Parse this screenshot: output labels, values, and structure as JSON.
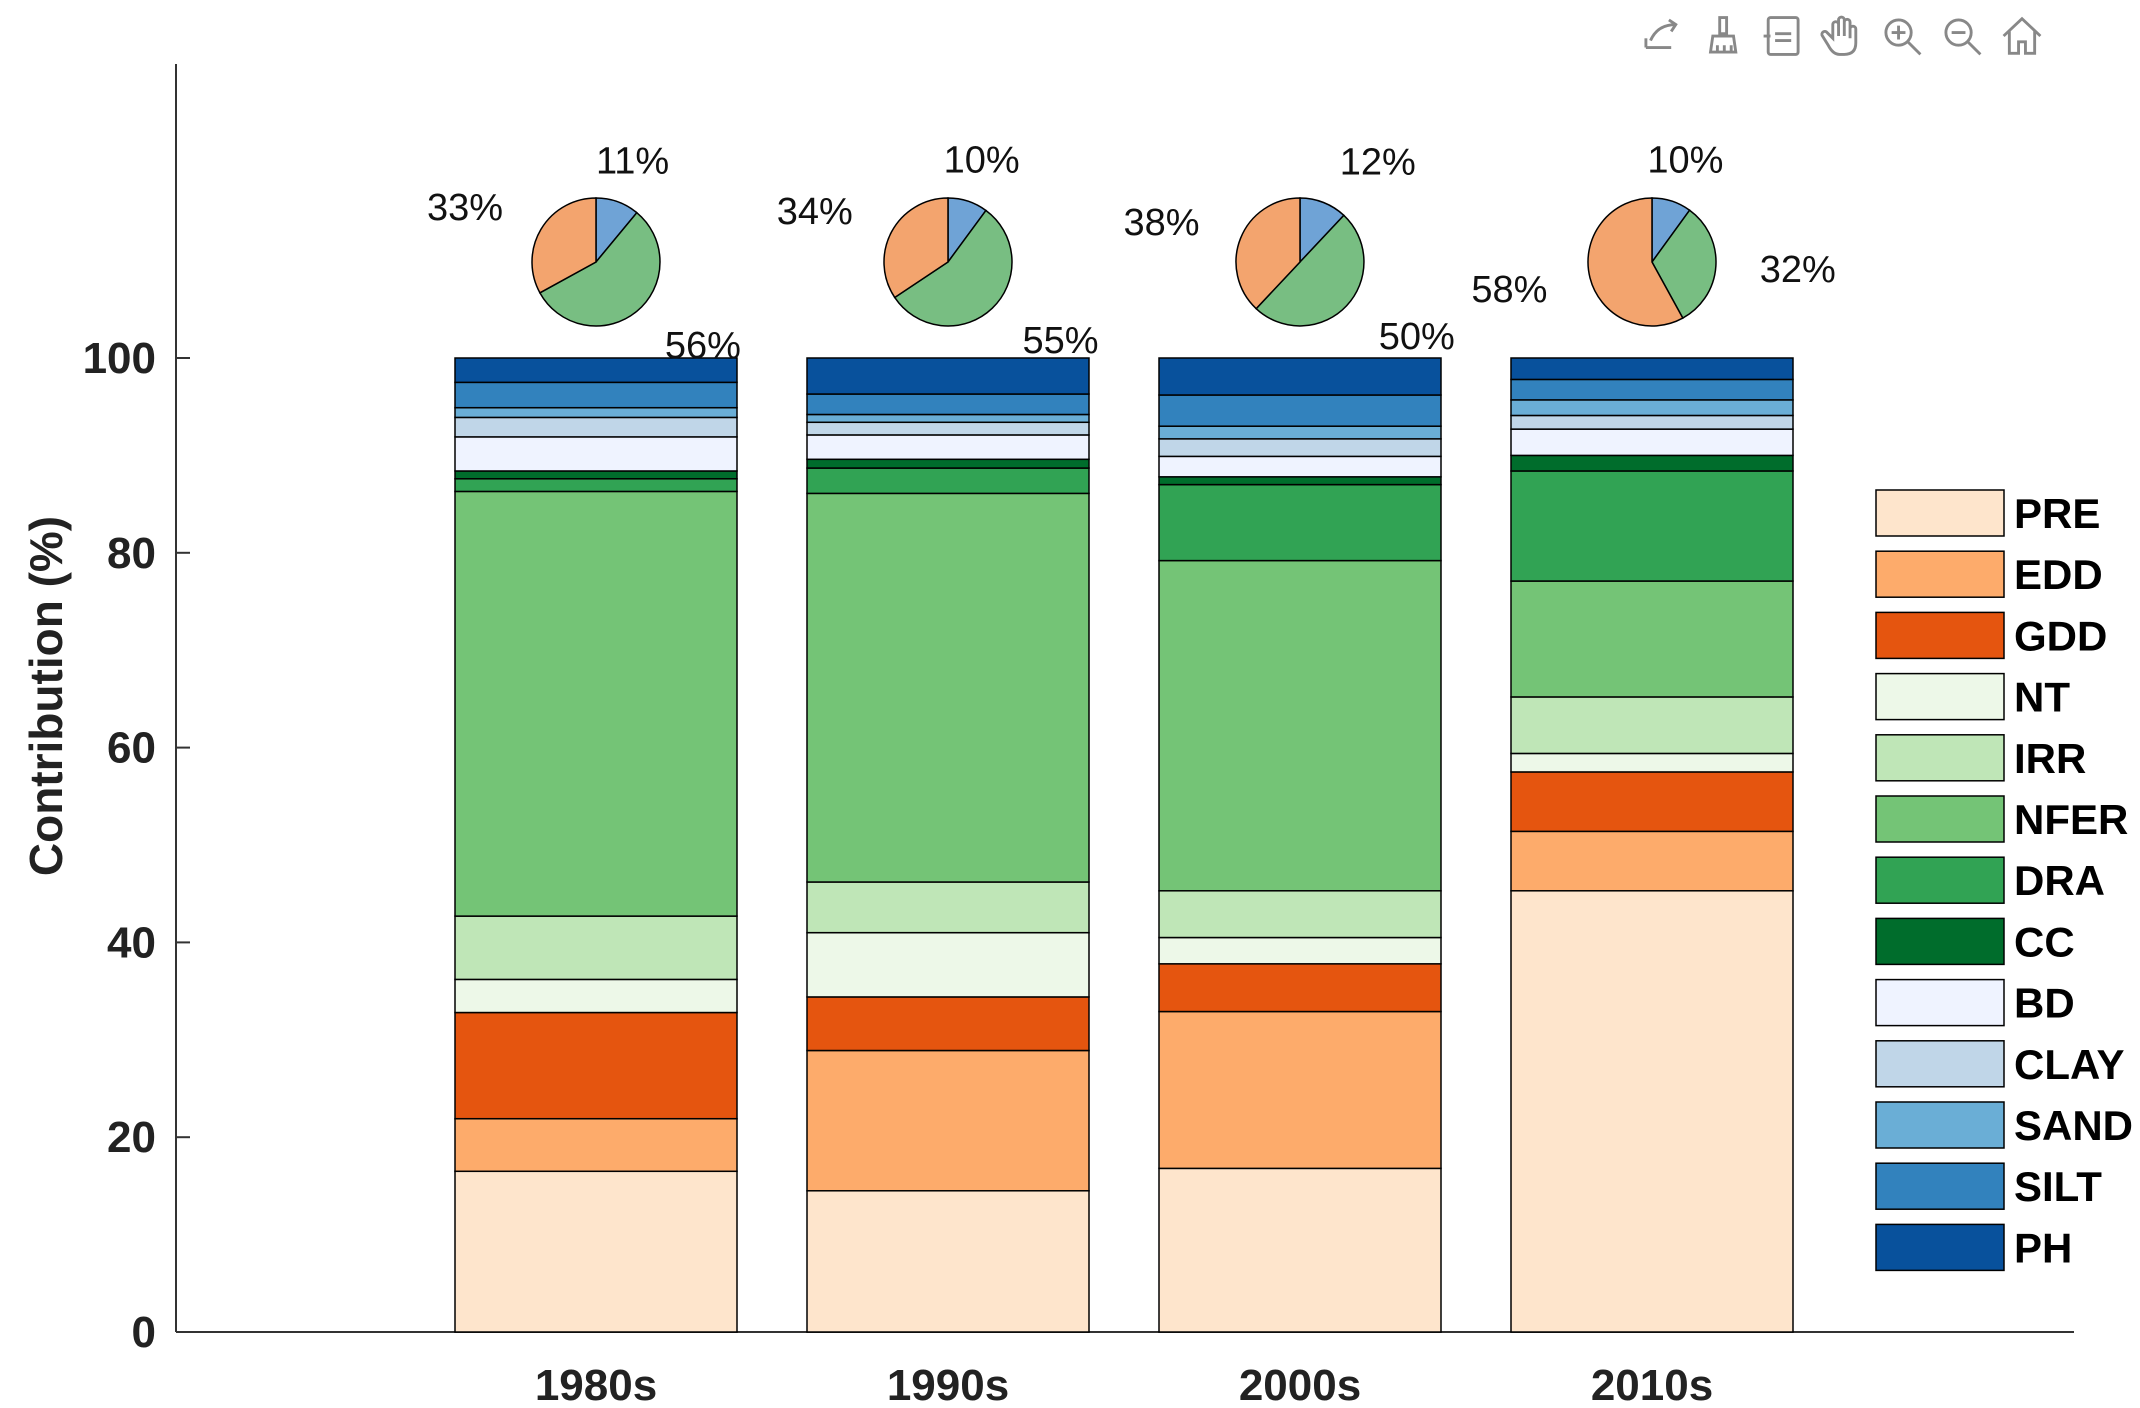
{
  "toolbar": {
    "tools": [
      {
        "name": "export-icon"
      },
      {
        "name": "brush-icon"
      },
      {
        "name": "datatip-icon"
      },
      {
        "name": "pan-hand-icon"
      },
      {
        "name": "zoom-in-icon"
      },
      {
        "name": "zoom-out-icon"
      },
      {
        "name": "home-icon"
      }
    ]
  },
  "chart_data": {
    "type": "bar",
    "stacked": true,
    "categories": [
      "1980s",
      "1990s",
      "2000s",
      "2010s"
    ],
    "ylabel": "Contribution (%)",
    "ylim": [
      0,
      100
    ],
    "yticks": [
      0,
      20,
      40,
      60,
      80,
      100
    ],
    "legend_position": "right",
    "series": [
      {
        "name": "PRE",
        "color": "#fee5cc",
        "values": [
          16.5,
          14.5,
          16.8,
          45.3
        ]
      },
      {
        "name": "EDD",
        "color": "#fdab6b",
        "values": [
          5.4,
          14.4,
          16.1,
          6.1
        ]
      },
      {
        "name": "GDD",
        "color": "#e5550f",
        "values": [
          10.9,
          5.5,
          4.9,
          6.1
        ]
      },
      {
        "name": "NT",
        "color": "#edf8e8",
        "values": [
          3.4,
          6.6,
          2.7,
          1.9
        ]
      },
      {
        "name": "IRR",
        "color": "#bfe6b7",
        "values": [
          6.5,
          5.2,
          4.8,
          5.8
        ]
      },
      {
        "name": "NFER",
        "color": "#74c476",
        "values": [
          43.6,
          39.9,
          33.9,
          11.9
        ]
      },
      {
        "name": "DRA",
        "color": "#31a354",
        "values": [
          1.3,
          2.6,
          7.8,
          11.3
        ]
      },
      {
        "name": "CC",
        "color": "#006d2c",
        "values": [
          0.8,
          0.9,
          0.8,
          1.6
        ]
      },
      {
        "name": "BD",
        "color": "#eff3ff",
        "values": [
          3.5,
          2.5,
          2.1,
          2.7
        ]
      },
      {
        "name": "CLAY",
        "color": "#c0d6e8",
        "values": [
          2.0,
          1.3,
          1.8,
          1.4
        ]
      },
      {
        "name": "SAND",
        "color": "#6aaed6",
        "values": [
          1.0,
          0.8,
          1.3,
          1.6
        ]
      },
      {
        "name": "SILT",
        "color": "#3282bd",
        "values": [
          2.6,
          2.1,
          3.2,
          2.1
        ]
      },
      {
        "name": "PH",
        "color": "#08519c",
        "values": [
          2.5,
          3.7,
          3.8,
          2.2
        ]
      }
    ],
    "pies": [
      {
        "category": "1980s",
        "slices": [
          {
            "label": "11%",
            "value": 11,
            "color": "#6fa3d6"
          },
          {
            "label": "56%",
            "value": 56,
            "color": "#78be82"
          },
          {
            "label": "33%",
            "value": 33,
            "color": "#f3a46e"
          }
        ]
      },
      {
        "category": "1990s",
        "slices": [
          {
            "label": "10%",
            "value": 10,
            "color": "#6fa3d6"
          },
          {
            "label": "55%",
            "value": 55,
            "color": "#78be82"
          },
          {
            "label": "34%",
            "value": 34,
            "color": "#f3a46e"
          }
        ]
      },
      {
        "category": "2000s",
        "slices": [
          {
            "label": "12%",
            "value": 12,
            "color": "#6fa3d6"
          },
          {
            "label": "50%",
            "value": 50,
            "color": "#78be82"
          },
          {
            "label": "38%",
            "value": 38,
            "color": "#f3a46e"
          }
        ]
      },
      {
        "category": "2010s",
        "slices": [
          {
            "label": "10%",
            "value": 10,
            "color": "#6fa3d6"
          },
          {
            "label": "32%",
            "value": 32,
            "color": "#78be82"
          },
          {
            "label": "58%",
            "value": 58,
            "color": "#f3a46e"
          }
        ]
      }
    ]
  }
}
